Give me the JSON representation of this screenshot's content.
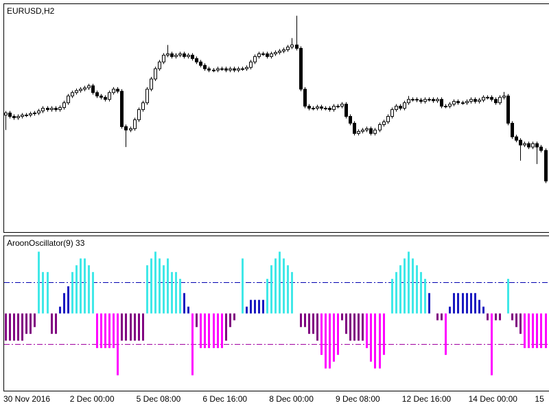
{
  "chart_data": [
    {
      "type": "candlestick",
      "title": "EURUSD,H2",
      "categories": [
        "30 Nov 2016",
        null,
        null,
        null,
        null,
        null,
        null,
        null,
        null,
        null,
        null,
        null,
        null,
        null,
        null,
        null,
        "2 Dec 00:00",
        null,
        null,
        null,
        null,
        null,
        null,
        null,
        null,
        null,
        null,
        null,
        null,
        null,
        null,
        null,
        "5 Dec 08:00",
        null,
        null,
        null,
        null,
        null,
        null,
        null,
        null,
        null,
        null,
        null,
        null,
        null,
        null,
        null,
        "6 Dec 16:00",
        null,
        null,
        null,
        null,
        null,
        null,
        null,
        null,
        null,
        null,
        null,
        null,
        null,
        null,
        null,
        "8 Dec 00:00",
        null,
        null,
        null,
        null,
        null,
        null,
        null,
        null,
        null,
        null,
        null,
        null,
        null,
        null,
        null,
        "9 Dec 08:00",
        null,
        null,
        null,
        null,
        null,
        null,
        null,
        null,
        null,
        null,
        null,
        null,
        null,
        null,
        null,
        "12 Dec 16:00",
        null,
        null,
        null,
        null,
        null,
        null,
        null,
        null,
        null,
        null,
        null,
        null,
        null,
        null,
        null,
        "14 Dec 00:00",
        null,
        null,
        null,
        null,
        null,
        null,
        null,
        null,
        null,
        null,
        null,
        null,
        null,
        null,
        null,
        "15",
        null,
        null
      ],
      "open": [
        172,
        175,
        170,
        168,
        170,
        172,
        172,
        174,
        175,
        178,
        182,
        180,
        182,
        180,
        183,
        190,
        200,
        205,
        208,
        210,
        212,
        215,
        205,
        200,
        198,
        195,
        205,
        210,
        207,
        155,
        150,
        152,
        165,
        180,
        190,
        210,
        225,
        240,
        250,
        260,
        262,
        258,
        260,
        262,
        258,
        260,
        255,
        250,
        245,
        240,
        238,
        238,
        240,
        240,
        238,
        240,
        238,
        240,
        240,
        242,
        250,
        258,
        262,
        262,
        258,
        262,
        264,
        266,
        268,
        272,
        275,
        270,
        210,
        185,
        182,
        182,
        184,
        182,
        182,
        180,
        185,
        185,
        188,
        170,
        160,
        145,
        148,
        150,
        152,
        145,
        150,
        158,
        162,
        170,
        180,
        185,
        182,
        190,
        195,
        195,
        194,
        192,
        195,
        195,
        193,
        195,
        185,
        185,
        188,
        192,
        190,
        190,
        192,
        195,
        192,
        194,
        198,
        198,
        195,
        190,
        198,
        200,
        160,
        140,
        135,
        128,
        130,
        125,
        130,
        125,
        120
      ],
      "high": [
        178,
        178,
        173,
        173,
        175,
        175,
        177,
        178,
        181,
        185,
        185,
        185,
        185,
        186,
        193,
        203,
        208,
        211,
        213,
        215,
        218,
        218,
        208,
        203,
        201,
        208,
        213,
        213,
        210,
        158,
        155,
        168,
        183,
        193,
        213,
        228,
        243,
        253,
        263,
        275,
        265,
        263,
        265,
        265,
        263,
        263,
        258,
        253,
        248,
        243,
        241,
        243,
        243,
        243,
        243,
        243,
        243,
        243,
        245,
        253,
        261,
        265,
        265,
        265,
        265,
        267,
        269,
        271,
        275,
        285,
        318,
        273,
        213,
        188,
        185,
        187,
        187,
        185,
        185,
        188,
        188,
        191,
        191,
        173,
        163,
        151,
        153,
        155,
        155,
        153,
        161,
        165,
        173,
        183,
        188,
        188,
        193,
        200,
        198,
        198,
        197,
        198,
        198,
        198,
        198,
        198,
        188,
        191,
        195,
        195,
        193,
        195,
        198,
        198,
        197,
        201,
        201,
        201,
        198,
        201,
        206,
        203,
        163,
        143,
        138,
        133,
        133,
        133,
        133,
        128,
        123
      ],
      "low": [
        150,
        167,
        165,
        165,
        167,
        169,
        169,
        171,
        172,
        175,
        177,
        177,
        177,
        177,
        180,
        187,
        197,
        202,
        205,
        207,
        209,
        202,
        197,
        195,
        192,
        192,
        202,
        204,
        152,
        125,
        147,
        149,
        162,
        177,
        187,
        207,
        222,
        237,
        247,
        257,
        255,
        255,
        257,
        255,
        255,
        252,
        247,
        242,
        237,
        235,
        235,
        235,
        237,
        235,
        235,
        235,
        235,
        237,
        237,
        239,
        247,
        255,
        259,
        255,
        255,
        259,
        261,
        263,
        265,
        269,
        267,
        207,
        182,
        179,
        179,
        179,
        179,
        179,
        177,
        177,
        182,
        182,
        167,
        157,
        142,
        142,
        145,
        147,
        142,
        142,
        147,
        155,
        159,
        167,
        177,
        179,
        179,
        187,
        192,
        191,
        189,
        189,
        192,
        190,
        190,
        182,
        182,
        182,
        185,
        187,
        187,
        187,
        189,
        189,
        189,
        191,
        195,
        192,
        187,
        187,
        195,
        157,
        137,
        132,
        105,
        125,
        122,
        122,
        100,
        117,
        72
      ],
      "close": [
        175,
        170,
        168,
        170,
        172,
        172,
        174,
        175,
        178,
        182,
        180,
        182,
        180,
        183,
        190,
        200,
        205,
        208,
        210,
        212,
        215,
        205,
        200,
        198,
        195,
        205,
        210,
        207,
        155,
        150,
        152,
        165,
        180,
        190,
        210,
        225,
        240,
        250,
        260,
        262,
        258,
        260,
        262,
        258,
        260,
        255,
        250,
        245,
        240,
        238,
        238,
        240,
        240,
        238,
        240,
        238,
        240,
        240,
        242,
        250,
        258,
        262,
        262,
        258,
        262,
        264,
        266,
        268,
        272,
        275,
        270,
        210,
        185,
        182,
        182,
        184,
        182,
        182,
        180,
        185,
        185,
        188,
        170,
        160,
        145,
        148,
        150,
        152,
        145,
        150,
        158,
        162,
        170,
        180,
        185,
        182,
        190,
        195,
        195,
        194,
        192,
        195,
        195,
        193,
        195,
        185,
        185,
        188,
        192,
        190,
        190,
        192,
        195,
        192,
        194,
        198,
        198,
        195,
        190,
        198,
        200,
        160,
        140,
        135,
        128,
        130,
        125,
        130,
        125,
        120,
        75
      ],
      "ylim": [
        0,
        335
      ],
      "up_color": "#ffffff",
      "down_color": "#000000",
      "line_color": "#000000"
    },
    {
      "type": "bar",
      "title": "AroonOscillator(9) 33",
      "values": [
        -44,
        -44,
        -44,
        -44,
        -44,
        -33,
        -33,
        -22,
        100,
        67,
        67,
        -33,
        -33,
        11,
        33,
        44,
        67,
        78,
        89,
        89,
        78,
        67,
        -56,
        -56,
        -56,
        -56,
        -56,
        -100,
        -44,
        -44,
        -44,
        -44,
        -44,
        -44,
        78,
        89,
        100,
        89,
        78,
        89,
        67,
        67,
        56,
        33,
        11,
        -100,
        -22,
        -56,
        -56,
        -56,
        -56,
        -56,
        -56,
        -44,
        -22,
        -11,
        0,
        89,
        11,
        22,
        22,
        22,
        22,
        56,
        78,
        89,
        100,
        89,
        78,
        67,
        0,
        -22,
        -22,
        -33,
        -33,
        -44,
        -67,
        -89,
        -89,
        -78,
        -67,
        -11,
        -33,
        -44,
        -44,
        -44,
        -44,
        -56,
        -78,
        -89,
        -89,
        -67,
        0,
        56,
        67,
        78,
        89,
        100,
        89,
        78,
        67,
        56,
        33,
        0,
        -11,
        -11,
        -67,
        11,
        33,
        33,
        33,
        33,
        33,
        33,
        22,
        11,
        -11,
        -100,
        -11,
        -11,
        0,
        56,
        -11,
        -22,
        -33,
        -56,
        -56,
        -56,
        -56,
        -56,
        -56
      ],
      "ylim": [
        -125,
        125
      ],
      "levels": [
        50,
        -50
      ],
      "level_colors": [
        "#0000b0",
        "#a000a0"
      ],
      "colors": [
        "#40e8e8",
        "#1818c0",
        "#800080",
        "#ff00ff"
      ]
    }
  ]
}
